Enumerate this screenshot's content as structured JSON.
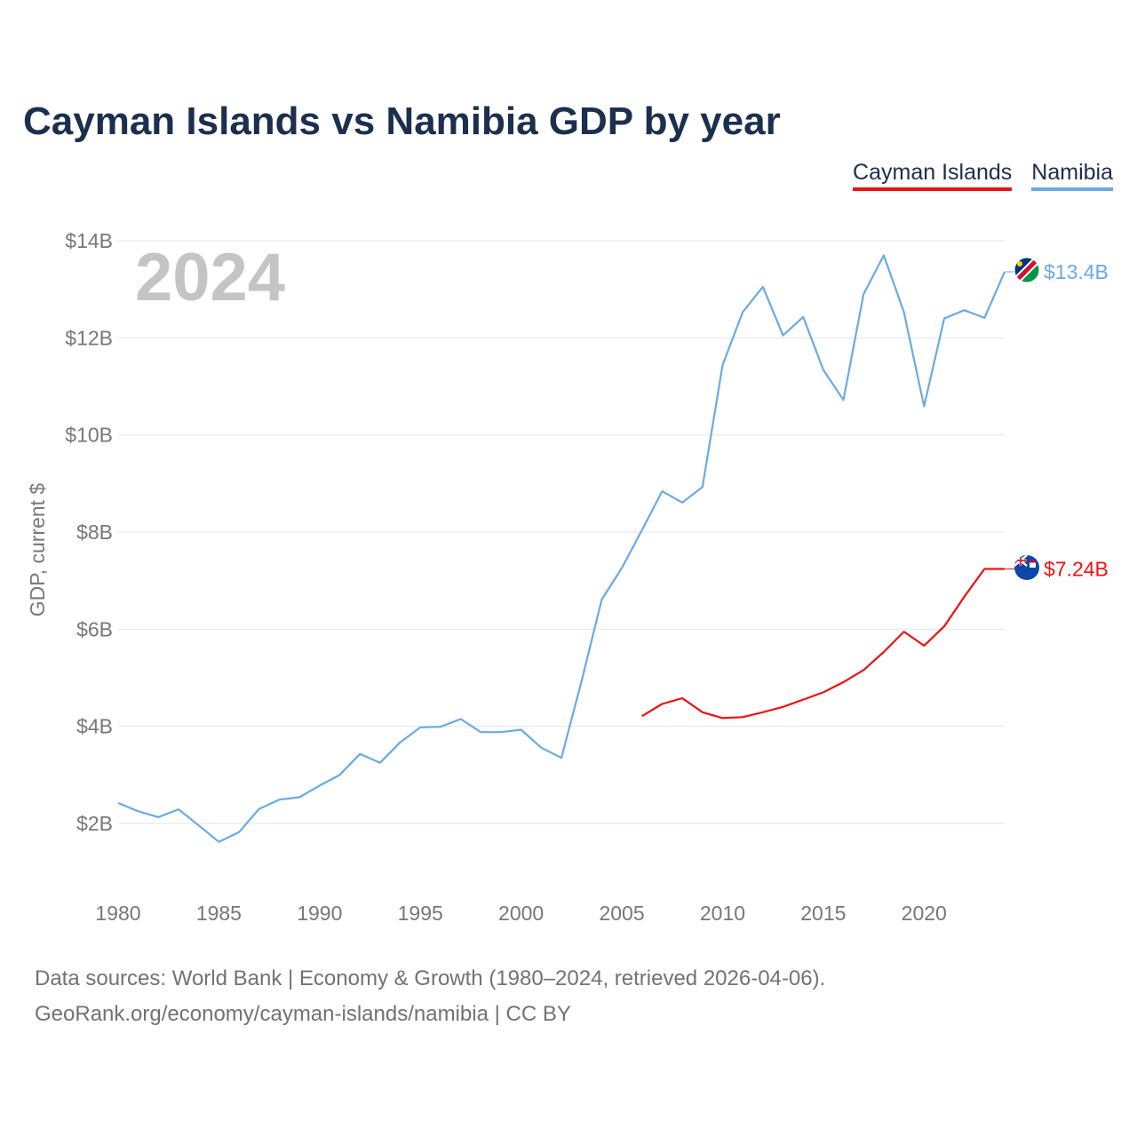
{
  "title": "Cayman Islands vs Namibia GDP by year",
  "legend": [
    {
      "label": "Cayman Islands",
      "color": "#ee1111"
    },
    {
      "label": "Namibia",
      "color": "#6aaae4"
    }
  ],
  "source": {
    "line1": "Data sources: World Bank | Economy & Growth (1980–2024, retrieved 2026-04-06).",
    "line2": "GeoRank.org/economy/cayman-islands/namibia | CC BY"
  },
  "chart_data": {
    "type": "line",
    "title": "Cayman Islands vs Namibia GDP by year",
    "year_watermark": "2024",
    "xlabel": "",
    "ylabel": "GDP, current $",
    "xlim": [
      1980,
      2024
    ],
    "ylim": [
      0.8,
      14
    ],
    "x_ticks": [
      1980,
      1985,
      1990,
      1995,
      2000,
      2005,
      2010,
      2015,
      2020
    ],
    "x_tick_labels": [
      "1980",
      "1985",
      "1990",
      "1995",
      "2000",
      "2005",
      "2010",
      "2015",
      "2020"
    ],
    "y_ticks": [
      2,
      4,
      6,
      8,
      10,
      12,
      14
    ],
    "y_tick_labels": [
      "$2B",
      "$4B",
      "$6B",
      "$8B",
      "$10B",
      "$12B",
      "$14B"
    ],
    "grid": true,
    "series": [
      {
        "name": "Namibia",
        "color": "#6aaae4",
        "end_label": "$13.4B",
        "flag_icon": "namibia-flag-icon",
        "x": [
          1980,
          1981,
          1982,
          1983,
          1984,
          1985,
          1986,
          1987,
          1988,
          1989,
          1990,
          1991,
          1992,
          1993,
          1994,
          1995,
          1996,
          1997,
          1998,
          1999,
          2000,
          2001,
          2002,
          2003,
          2004,
          2005,
          2006,
          2007,
          2008,
          2009,
          2010,
          2011,
          2012,
          2013,
          2014,
          2015,
          2016,
          2017,
          2018,
          2019,
          2020,
          2021,
          2022,
          2023,
          2024
        ],
        "values": [
          2.42,
          2.25,
          2.13,
          2.29,
          1.96,
          1.62,
          1.82,
          2.3,
          2.49,
          2.54,
          2.78,
          3.0,
          3.43,
          3.25,
          3.67,
          3.98,
          3.99,
          4.15,
          3.88,
          3.88,
          3.93,
          3.56,
          3.35,
          4.93,
          6.61,
          7.26,
          8.04,
          8.84,
          8.61,
          8.93,
          11.44,
          12.53,
          13.05,
          12.05,
          12.43,
          11.34,
          10.72,
          12.9,
          13.7,
          12.53,
          10.59,
          12.4,
          12.57,
          12.41,
          13.36
        ]
      },
      {
        "name": "Cayman Islands",
        "color": "#ee1111",
        "end_label": "$7.24B",
        "flag_icon": "cayman-islands-flag-icon",
        "x": [
          2006,
          2007,
          2008,
          2009,
          2010,
          2011,
          2012,
          2013,
          2014,
          2015,
          2016,
          2017,
          2018,
          2019,
          2020,
          2021,
          2022,
          2023,
          2024
        ],
        "values": [
          4.21,
          4.46,
          4.58,
          4.29,
          4.17,
          4.19,
          4.29,
          4.4,
          4.55,
          4.7,
          4.91,
          5.16,
          5.53,
          5.95,
          5.66,
          6.06,
          6.67,
          7.24,
          7.24
        ]
      }
    ]
  }
}
